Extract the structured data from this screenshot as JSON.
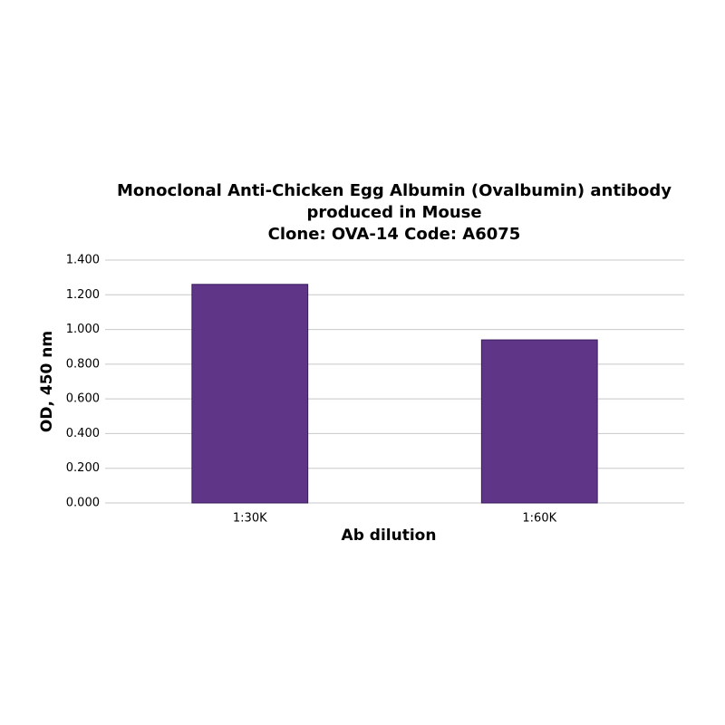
{
  "chart_data": {
    "type": "bar",
    "title_lines": [
      "Monoclonal Anti-Chicken Egg Albumin (Ovalbumin) antibody",
      "produced in Mouse",
      "Clone: OVA-14  Code: A6075"
    ],
    "x_label": "Ab dilution",
    "y_label": "OD, 450 nm",
    "categories": [
      "1:30K",
      "1:60K"
    ],
    "values": [
      1.26,
      0.94
    ],
    "color": "#5e3587",
    "ylim": [
      0,
      1.4
    ],
    "yticks": [
      {
        "value": 0,
        "label": "0.000"
      },
      {
        "value": 0.2,
        "label": "0.200"
      },
      {
        "value": 0.4,
        "label": "0.400"
      },
      {
        "value": 0.6,
        "label": "0.600"
      },
      {
        "value": 0.8,
        "label": "0.800"
      },
      {
        "value": 1.0,
        "label": "1.000"
      },
      {
        "value": 1.2,
        "label": "1.200"
      },
      {
        "value": 1.4,
        "label": "1.400"
      }
    ],
    "grid": true
  }
}
